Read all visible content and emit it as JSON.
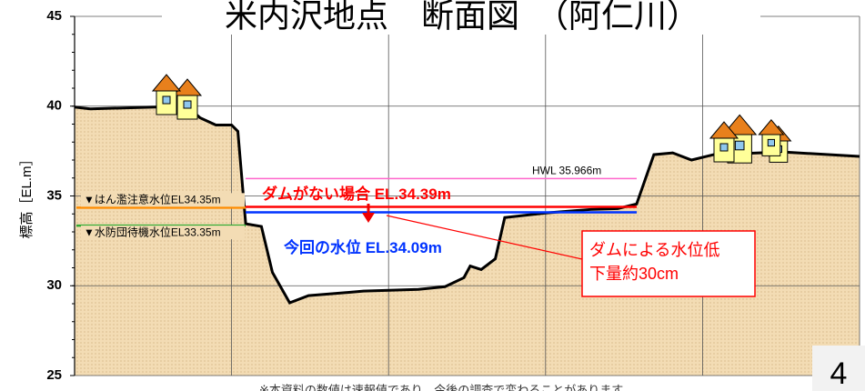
{
  "chart_data": {
    "type": "area",
    "title": "米内沢地点　断面図　（阿仁川）",
    "ylabel": "標高［EL.m］",
    "ylim": [
      25,
      45
    ],
    "yticks": [
      25,
      30,
      35,
      40,
      45
    ],
    "xlim": [
      0,
      5
    ],
    "xticks": [
      0,
      1,
      2,
      3,
      4,
      5
    ],
    "grid": true,
    "ground": {
      "color": "#000000",
      "fill": "#f3dcb4",
      "x": [
        0,
        0.1,
        0.51,
        0.72,
        0.8,
        0.9,
        1.0,
        1.04,
        1.09,
        1.19,
        1.26,
        1.37,
        1.49,
        1.84,
        2.19,
        2.36,
        2.48,
        2.52,
        2.59,
        2.68,
        2.74,
        3.0,
        3.29,
        3.46,
        3.58,
        3.69,
        3.81,
        3.93,
        4.07,
        4.51,
        5.0
      ],
      "values": [
        39.95,
        39.85,
        39.95,
        39.95,
        39.35,
        38.95,
        38.95,
        38.6,
        33.45,
        33.3,
        30.75,
        29.05,
        29.45,
        29.7,
        29.8,
        29.95,
        30.45,
        31.1,
        30.9,
        31.5,
        33.8,
        34.05,
        34.25,
        34.3,
        34.55,
        37.3,
        37.4,
        37.0,
        37.3,
        37.45,
        37.2
      ]
    },
    "levels": [
      {
        "name": "HWL 35.966m",
        "value": 35.966,
        "color": "#ff66cc"
      },
      {
        "name": "ダムがない場合 EL.34.39m",
        "value": 34.39,
        "color": "#ff0000"
      },
      {
        "name": "今回の水位 EL.34.09m",
        "value": 34.09,
        "color": "#0033ff"
      },
      {
        "name": "▼はん濫注意水位EL34.35m",
        "value": 34.35,
        "color": "#ff8c00"
      },
      {
        "name": "▼水防団待機水位EL33.35m",
        "value": 33.35,
        "color": "#33aa33"
      }
    ],
    "callout": [
      "ダムによる水位低",
      "下量約30cm"
    ],
    "note": "※本資料の数値は速報値であり、今後の調査で変わることがあります",
    "page": "4"
  }
}
